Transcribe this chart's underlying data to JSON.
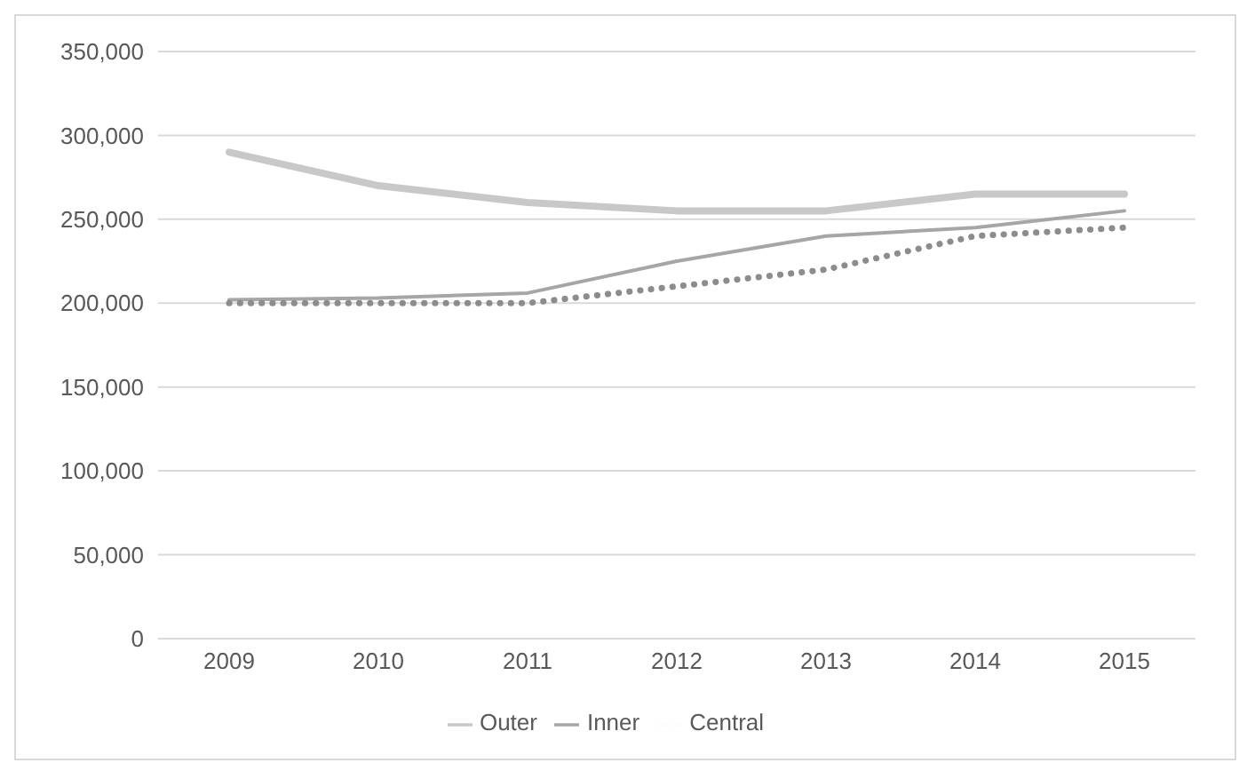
{
  "chart_data": {
    "type": "line",
    "categories": [
      "2009",
      "2010",
      "2011",
      "2012",
      "2013",
      "2014",
      "2015"
    ],
    "series": [
      {
        "name": "Outer",
        "color": "#c8c8c8",
        "line_style": "solid",
        "values": [
          290000,
          270000,
          260000,
          255000,
          255000,
          265000,
          265000
        ]
      },
      {
        "name": "Inner",
        "color": "#a6a6a6",
        "line_style": "solid",
        "values": [
          202000,
          203000,
          206000,
          225000,
          240000,
          245000,
          255000
        ]
      },
      {
        "name": "Central",
        "color": "#8c8c8c",
        "line_style": "dotted",
        "values": [
          200000,
          200000,
          200000,
          210000,
          220000,
          240000,
          245000
        ]
      }
    ],
    "ylim": [
      0,
      350000
    ],
    "yticks": [
      0,
      {
        "value": 50000,
        "label": "50,000"
      },
      {
        "value": 100000,
        "label": "100,000"
      },
      {
        "value": 150000,
        "label": "150,000"
      },
      {
        "value": 200000,
        "label": "200,000"
      },
      {
        "value": 250000,
        "label": "250,000"
      },
      {
        "value": 300000,
        "label": "300,000"
      },
      {
        "value": 350000,
        "label": "350,000"
      }
    ],
    "grid": "y",
    "legend": "bottom",
    "marker": "none"
  }
}
